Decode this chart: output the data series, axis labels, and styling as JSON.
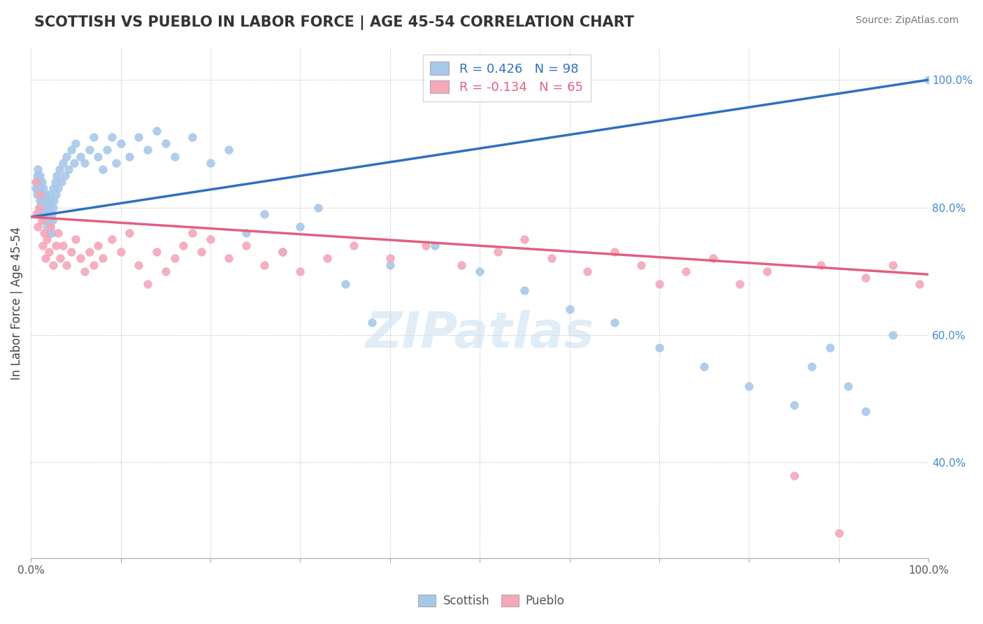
{
  "title": "SCOTTISH VS PUEBLO IN LABOR FORCE | AGE 45-54 CORRELATION CHART",
  "source_text": "Source: ZipAtlas.com",
  "ylabel": "In Labor Force | Age 45-54",
  "xlim": [
    0.0,
    1.0
  ],
  "ylim": [
    0.25,
    1.05
  ],
  "xticks": [
    0.0,
    0.1,
    0.2,
    0.3,
    0.4,
    0.5,
    0.6,
    0.7,
    0.8,
    0.9,
    1.0
  ],
  "yticks": [
    0.4,
    0.6,
    0.8,
    1.0
  ],
  "ytick_labels": [
    "40.0%",
    "60.0%",
    "80.0%",
    "100.0%"
  ],
  "scottish_color": "#a8c8ea",
  "pueblo_color": "#f4a8b8",
  "scottish_line_color": "#3070c0",
  "pueblo_line_color": "#e06080",
  "legend_text_color_blue": "#3070c0",
  "legend_text_color_pink": "#e06080",
  "R_scottish": 0.426,
  "N_scottish": 98,
  "R_pueblo": -0.134,
  "N_pueblo": 65,
  "watermark": "ZIPatlas",
  "scottish_regression": [
    0.785,
    0.215
  ],
  "pueblo_regression": [
    0.785,
    -0.09
  ],
  "scottish_x": [
    0.005,
    0.006,
    0.007,
    0.007,
    0.008,
    0.008,
    0.009,
    0.009,
    0.01,
    0.01,
    0.01,
    0.01,
    0.011,
    0.011,
    0.012,
    0.012,
    0.013,
    0.013,
    0.014,
    0.014,
    0.015,
    0.015,
    0.016,
    0.016,
    0.017,
    0.017,
    0.018,
    0.018,
    0.019,
    0.019,
    0.02,
    0.02,
    0.02,
    0.021,
    0.021,
    0.022,
    0.022,
    0.023,
    0.023,
    0.024,
    0.025,
    0.025,
    0.026,
    0.027,
    0.028,
    0.029,
    0.03,
    0.032,
    0.034,
    0.036,
    0.038,
    0.04,
    0.042,
    0.045,
    0.048,
    0.05,
    0.055,
    0.06,
    0.065,
    0.07,
    0.075,
    0.08,
    0.085,
    0.09,
    0.095,
    0.1,
    0.11,
    0.12,
    0.13,
    0.14,
    0.15,
    0.16,
    0.18,
    0.2,
    0.22,
    0.24,
    0.26,
    0.28,
    0.3,
    0.32,
    0.35,
    0.38,
    0.4,
    0.45,
    0.5,
    0.55,
    0.6,
    0.65,
    0.7,
    0.75,
    0.8,
    0.85,
    0.87,
    0.89,
    0.91,
    0.93,
    0.96,
    1.0
  ],
  "scottish_y": [
    0.83,
    0.84,
    0.82,
    0.85,
    0.83,
    0.86,
    0.8,
    0.84,
    0.79,
    0.81,
    0.83,
    0.85,
    0.8,
    0.82,
    0.81,
    0.84,
    0.79,
    0.82,
    0.8,
    0.83,
    0.78,
    0.81,
    0.79,
    0.82,
    0.78,
    0.8,
    0.77,
    0.8,
    0.78,
    0.81,
    0.76,
    0.79,
    0.82,
    0.78,
    0.81,
    0.77,
    0.8,
    0.76,
    0.79,
    0.78,
    0.8,
    0.83,
    0.81,
    0.84,
    0.82,
    0.85,
    0.83,
    0.86,
    0.84,
    0.87,
    0.85,
    0.88,
    0.86,
    0.89,
    0.87,
    0.9,
    0.88,
    0.87,
    0.89,
    0.91,
    0.88,
    0.86,
    0.89,
    0.91,
    0.87,
    0.9,
    0.88,
    0.91,
    0.89,
    0.92,
    0.9,
    0.88,
    0.91,
    0.87,
    0.89,
    0.76,
    0.79,
    0.73,
    0.77,
    0.8,
    0.68,
    0.62,
    0.71,
    0.74,
    0.7,
    0.67,
    0.64,
    0.62,
    0.58,
    0.55,
    0.52,
    0.49,
    0.55,
    0.58,
    0.52,
    0.48,
    0.6,
    1.0
  ],
  "pueblo_x": [
    0.005,
    0.006,
    0.008,
    0.009,
    0.01,
    0.012,
    0.013,
    0.015,
    0.016,
    0.018,
    0.02,
    0.022,
    0.025,
    0.028,
    0.03,
    0.033,
    0.036,
    0.04,
    0.045,
    0.05,
    0.055,
    0.06,
    0.065,
    0.07,
    0.075,
    0.08,
    0.09,
    0.1,
    0.11,
    0.12,
    0.13,
    0.14,
    0.15,
    0.16,
    0.17,
    0.18,
    0.19,
    0.2,
    0.22,
    0.24,
    0.26,
    0.28,
    0.3,
    0.33,
    0.36,
    0.4,
    0.44,
    0.48,
    0.52,
    0.55,
    0.58,
    0.62,
    0.65,
    0.68,
    0.7,
    0.73,
    0.76,
    0.79,
    0.82,
    0.85,
    0.88,
    0.9,
    0.93,
    0.96,
    0.99
  ],
  "pueblo_y": [
    0.84,
    0.79,
    0.77,
    0.8,
    0.82,
    0.78,
    0.74,
    0.76,
    0.72,
    0.75,
    0.73,
    0.77,
    0.71,
    0.74,
    0.76,
    0.72,
    0.74,
    0.71,
    0.73,
    0.75,
    0.72,
    0.7,
    0.73,
    0.71,
    0.74,
    0.72,
    0.75,
    0.73,
    0.76,
    0.71,
    0.68,
    0.73,
    0.7,
    0.72,
    0.74,
    0.76,
    0.73,
    0.75,
    0.72,
    0.74,
    0.71,
    0.73,
    0.7,
    0.72,
    0.74,
    0.72,
    0.74,
    0.71,
    0.73,
    0.75,
    0.72,
    0.7,
    0.73,
    0.71,
    0.68,
    0.7,
    0.72,
    0.68,
    0.7,
    0.38,
    0.71,
    0.29,
    0.69,
    0.71,
    0.68
  ]
}
